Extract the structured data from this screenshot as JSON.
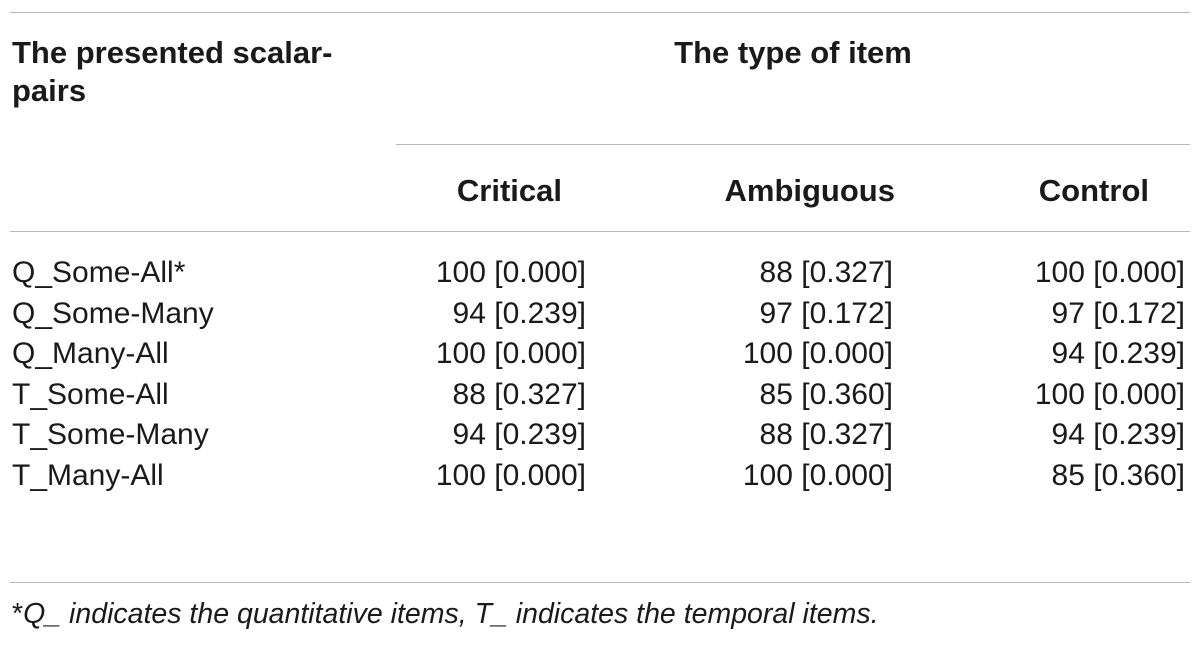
{
  "table": {
    "stub_header": "The presented scalar-pairs",
    "group_header": "The type of item",
    "columns": [
      "Critical",
      "Ambiguous",
      "Control"
    ],
    "rows": [
      {
        "label": "Q_Some-All*",
        "values": [
          "100 [0.000]",
          "88 [0.327]",
          "100 [0.000]"
        ]
      },
      {
        "label": "Q_Some-Many",
        "values": [
          "94 [0.239]",
          "97 [0.172]",
          "97 [0.172]"
        ]
      },
      {
        "label": "Q_Many-All",
        "values": [
          "100 [0.000]",
          "100 [0.000]",
          "94 [0.239]"
        ]
      },
      {
        "label": "T_Some-All",
        "values": [
          "88 [0.327]",
          "85 [0.360]",
          "100 [0.000]"
        ]
      },
      {
        "label": "T_Some-Many",
        "values": [
          "94 [0.239]",
          "88 [0.327]",
          "94 [0.239]"
        ]
      },
      {
        "label": "T_Many-All",
        "values": [
          "100 [0.000]",
          "100 [0.000]",
          "85 [0.360]"
        ]
      }
    ],
    "footnote_marker": "*",
    "footnote": "Q_ indicates the quantitative items, T_ indicates the temporal items."
  }
}
